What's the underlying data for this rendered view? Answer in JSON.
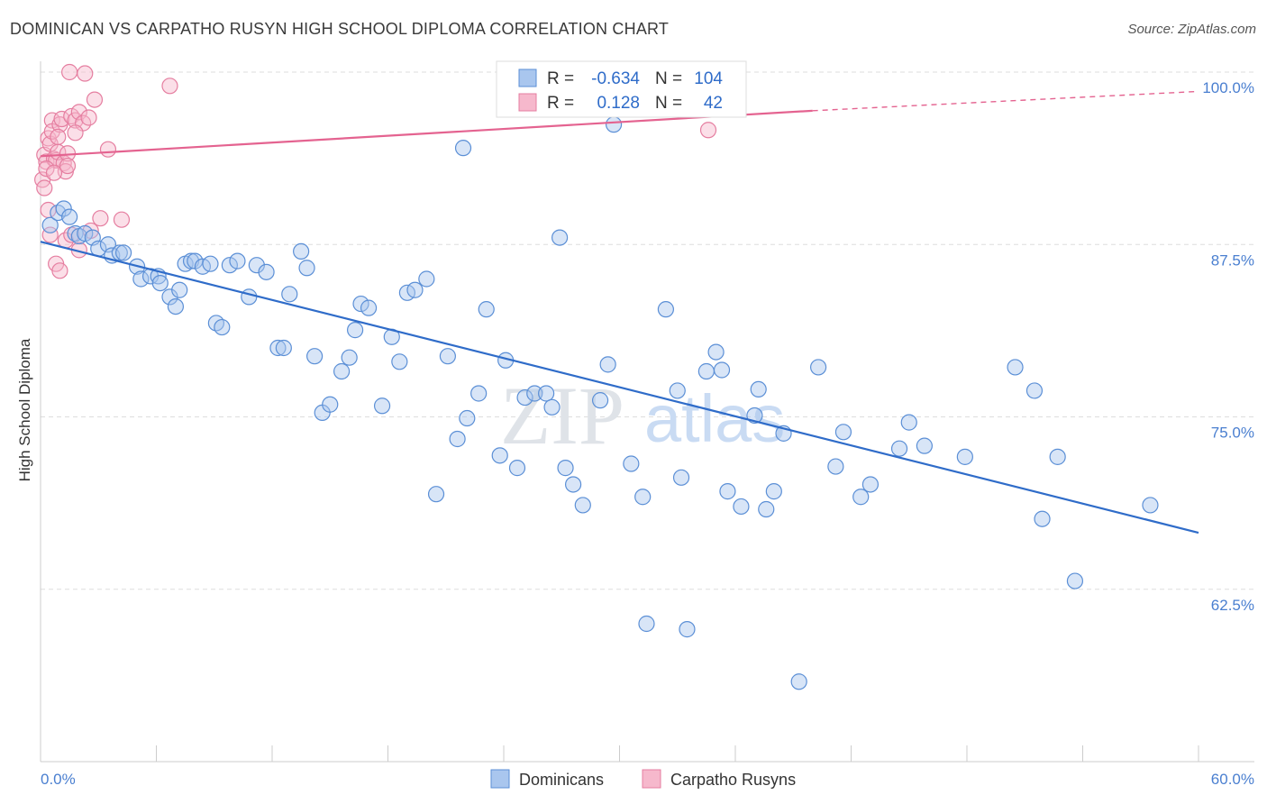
{
  "title": "DOMINICAN VS CARPATHO RUSYN HIGH SCHOOL DIPLOMA CORRELATION CHART",
  "source": "Source: ZipAtlas.com",
  "colors": {
    "blue": "#5b8fd6",
    "blue_fill": "#a9c6ee",
    "blue_line": "#2f6cc9",
    "pink": "#e57ea0",
    "pink_fill": "#f6b8cc",
    "pink_line": "#e46390",
    "grid": "#dddddd",
    "tick_text": "#4a7fd0"
  },
  "legend_box": {
    "rows": [
      {
        "r_label": "R =",
        "r_value": "-0.634",
        "n_label": "N =",
        "n_value": "104",
        "color": "blue"
      },
      {
        "r_label": "R =",
        "r_value": "0.128",
        "n_label": "N =",
        "n_value": "42",
        "color": "pink"
      }
    ]
  },
  "watermark": {
    "zip": "ZIP",
    "atlas": "atlas"
  },
  "chart_data": {
    "type": "scatter",
    "title": "DOMINICAN VS CARPATHO RUSYN HIGH SCHOOL DIPLOMA CORRELATION CHART",
    "xlabel": "",
    "ylabel": "High School Diploma",
    "xlim": [
      0,
      60
    ],
    "ylim": [
      50,
      100
    ],
    "x_tick_labels": [
      "0.0%",
      "60.0%"
    ],
    "y_ticks": [
      62.5,
      75.0,
      87.5,
      100.0
    ],
    "y_tick_labels": [
      "62.5%",
      "75.0%",
      "87.5%",
      "100.0%"
    ],
    "grid": "horizontal dashed",
    "legend": "top-center",
    "series": [
      {
        "name": "Dominicans",
        "color": "blue",
        "trend": {
          "x0": 0,
          "y0": 87.7,
          "x1": 60,
          "y1": 66.6
        },
        "points": [
          [
            0.5,
            88.9
          ],
          [
            0.9,
            89.8
          ],
          [
            1.2,
            90.1
          ],
          [
            1.5,
            89.5
          ],
          [
            1.8,
            88.3
          ],
          [
            2.0,
            88.1
          ],
          [
            2.3,
            88.3
          ],
          [
            2.7,
            88.0
          ],
          [
            3.0,
            87.2
          ],
          [
            3.5,
            87.5
          ],
          [
            3.7,
            86.7
          ],
          [
            4.1,
            86.9
          ],
          [
            4.3,
            86.9
          ],
          [
            5.0,
            85.9
          ],
          [
            5.2,
            85.0
          ],
          [
            5.7,
            85.2
          ],
          [
            6.1,
            85.2
          ],
          [
            6.2,
            84.7
          ],
          [
            6.7,
            83.7
          ],
          [
            7.0,
            83.0
          ],
          [
            7.2,
            84.2
          ],
          [
            7.5,
            86.1
          ],
          [
            7.8,
            86.3
          ],
          [
            8.0,
            86.3
          ],
          [
            8.4,
            85.9
          ],
          [
            8.8,
            86.1
          ],
          [
            9.1,
            81.8
          ],
          [
            9.4,
            81.5
          ],
          [
            9.8,
            86.0
          ],
          [
            10.2,
            86.3
          ],
          [
            10.8,
            83.7
          ],
          [
            11.2,
            86.0
          ],
          [
            11.7,
            85.5
          ],
          [
            12.3,
            80.0
          ],
          [
            12.6,
            80.0
          ],
          [
            12.9,
            83.9
          ],
          [
            13.5,
            87.0
          ],
          [
            13.8,
            85.8
          ],
          [
            14.2,
            79.4
          ],
          [
            14.6,
            75.3
          ],
          [
            15.0,
            75.9
          ],
          [
            15.6,
            78.3
          ],
          [
            16.0,
            79.3
          ],
          [
            16.3,
            81.3
          ],
          [
            16.6,
            83.2
          ],
          [
            17.0,
            82.9
          ],
          [
            17.7,
            75.8
          ],
          [
            18.2,
            80.8
          ],
          [
            18.6,
            79.0
          ],
          [
            19.0,
            84.0
          ],
          [
            19.4,
            84.2
          ],
          [
            20.0,
            85.0
          ],
          [
            20.5,
            69.4
          ],
          [
            21.1,
            79.4
          ],
          [
            21.6,
            73.4
          ],
          [
            22.1,
            74.9
          ],
          [
            22.7,
            76.7
          ],
          [
            23.1,
            82.8
          ],
          [
            23.8,
            72.2
          ],
          [
            24.1,
            79.1
          ],
          [
            24.7,
            71.3
          ],
          [
            25.1,
            76.4
          ],
          [
            25.6,
            76.7
          ],
          [
            26.2,
            76.7
          ],
          [
            26.5,
            75.7
          ],
          [
            26.9,
            88.0
          ],
          [
            27.2,
            71.3
          ],
          [
            27.6,
            70.1
          ],
          [
            28.1,
            68.6
          ],
          [
            29.0,
            76.2
          ],
          [
            29.4,
            78.8
          ],
          [
            29.7,
            96.2
          ],
          [
            30.6,
            71.6
          ],
          [
            31.2,
            69.2
          ],
          [
            32.4,
            82.8
          ],
          [
            33.0,
            76.9
          ],
          [
            33.2,
            70.6
          ],
          [
            34.5,
            78.3
          ],
          [
            35.0,
            79.7
          ],
          [
            35.3,
            78.4
          ],
          [
            35.6,
            69.6
          ],
          [
            36.3,
            68.5
          ],
          [
            37.0,
            75.1
          ],
          [
            37.2,
            77.0
          ],
          [
            37.6,
            68.3
          ],
          [
            38.0,
            69.6
          ],
          [
            38.5,
            73.8
          ],
          [
            39.3,
            55.8
          ],
          [
            40.3,
            78.6
          ],
          [
            41.2,
            71.4
          ],
          [
            41.6,
            73.9
          ],
          [
            42.5,
            69.2
          ],
          [
            43.0,
            70.1
          ],
          [
            44.5,
            72.7
          ],
          [
            45.0,
            74.6
          ],
          [
            45.8,
            72.9
          ],
          [
            47.9,
            72.1
          ],
          [
            50.5,
            78.6
          ],
          [
            51.5,
            76.9
          ],
          [
            51.9,
            67.6
          ],
          [
            52.7,
            72.1
          ],
          [
            53.6,
            63.1
          ],
          [
            57.5,
            68.6
          ],
          [
            21.9,
            94.5
          ],
          [
            33.5,
            59.6
          ],
          [
            31.4,
            60.0
          ]
        ]
      },
      {
        "name": "Carpatho Rusyns",
        "color": "pink",
        "trend": {
          "x0": 0,
          "y0": 93.9,
          "x1": 40,
          "y1": 97.2,
          "dash_to_x": 60,
          "dash_to_y": 98.6
        },
        "points": [
          [
            0.1,
            92.2
          ],
          [
            0.2,
            94.0
          ],
          [
            0.3,
            93.5
          ],
          [
            0.4,
            95.2
          ],
          [
            0.5,
            94.8
          ],
          [
            0.6,
            96.5
          ],
          [
            0.6,
            95.7
          ],
          [
            0.7,
            93.7
          ],
          [
            0.8,
            93.6
          ],
          [
            0.9,
            94.2
          ],
          [
            1.0,
            96.2
          ],
          [
            1.1,
            96.6
          ],
          [
            1.2,
            93.4
          ],
          [
            1.3,
            92.8
          ],
          [
            1.4,
            94.1
          ],
          [
            1.5,
            100.0
          ],
          [
            1.6,
            96.8
          ],
          [
            1.8,
            96.5
          ],
          [
            2.0,
            97.1
          ],
          [
            2.2,
            96.3
          ],
          [
            2.3,
            99.9
          ],
          [
            2.5,
            96.7
          ],
          [
            2.8,
            98.0
          ],
          [
            3.5,
            94.4
          ],
          [
            0.2,
            91.6
          ],
          [
            0.4,
            90.0
          ],
          [
            0.5,
            88.2
          ],
          [
            0.8,
            86.1
          ],
          [
            1.0,
            85.6
          ],
          [
            1.3,
            87.8
          ],
          [
            1.6,
            88.2
          ],
          [
            2.0,
            87.1
          ],
          [
            2.6,
            88.5
          ],
          [
            3.1,
            89.4
          ],
          [
            4.2,
            89.3
          ],
          [
            6.7,
            99.0
          ],
          [
            34.6,
            95.8
          ],
          [
            1.8,
            95.6
          ],
          [
            0.9,
            95.3
          ],
          [
            1.4,
            93.2
          ],
          [
            0.3,
            93.0
          ],
          [
            0.7,
            92.7
          ]
        ]
      }
    ]
  },
  "bottom_legend": [
    {
      "label": "Dominicans",
      "color": "blue"
    },
    {
      "label": "Carpatho Rusyns",
      "color": "pink"
    }
  ]
}
